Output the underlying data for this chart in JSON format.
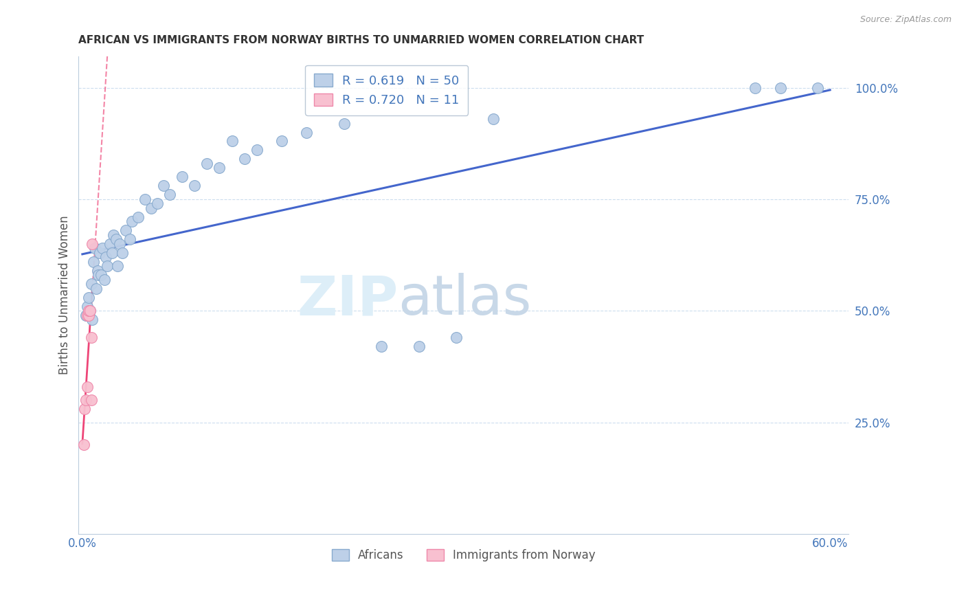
{
  "title": "AFRICAN VS IMMIGRANTS FROM NORWAY BIRTHS TO UNMARRIED WOMEN CORRELATION CHART",
  "source": "Source: ZipAtlas.com",
  "ylabel": "Births to Unmarried Women",
  "xlim": [
    -0.003,
    0.615
  ],
  "ylim": [
    0.0,
    1.07
  ],
  "xticks": [
    0.0,
    0.1,
    0.2,
    0.3,
    0.4,
    0.5,
    0.6
  ],
  "yticks_right": [
    0.25,
    0.5,
    0.75,
    1.0
  ],
  "ytick_labels_right": [
    "25.0%",
    "50.0%",
    "75.0%",
    "100.0%"
  ],
  "blue_scatter_color": "#BDD0E8",
  "blue_edge_color": "#88AACE",
  "pink_scatter_color": "#F8C0D0",
  "pink_edge_color": "#EE88AA",
  "line_blue_color": "#4466CC",
  "line_pink_color": "#EE4477",
  "axis_color": "#BBCCDD",
  "tick_label_color": "#4477BB",
  "grid_color": "#CCDDEE",
  "title_color": "#333333",
  "source_color": "#999999",
  "ylabel_color": "#555555",
  "watermark_zip_color": "#DDEEF8",
  "watermark_atlas_color": "#C8D8E8",
  "R_blue": 0.619,
  "N_blue": 50,
  "R_pink": 0.72,
  "N_pink": 11,
  "africans_x": [
    0.003,
    0.004,
    0.005,
    0.006,
    0.007,
    0.008,
    0.009,
    0.01,
    0.011,
    0.012,
    0.013,
    0.014,
    0.015,
    0.016,
    0.018,
    0.019,
    0.02,
    0.022,
    0.024,
    0.025,
    0.027,
    0.028,
    0.03,
    0.032,
    0.035,
    0.038,
    0.04,
    0.045,
    0.05,
    0.055,
    0.06,
    0.065,
    0.07,
    0.08,
    0.09,
    0.1,
    0.11,
    0.12,
    0.13,
    0.14,
    0.16,
    0.18,
    0.21,
    0.24,
    0.27,
    0.3,
    0.33,
    0.54,
    0.56,
    0.59
  ],
  "africans_y": [
    0.49,
    0.51,
    0.53,
    0.5,
    0.56,
    0.48,
    0.61,
    0.64,
    0.55,
    0.59,
    0.58,
    0.63,
    0.58,
    0.64,
    0.57,
    0.62,
    0.6,
    0.65,
    0.63,
    0.67,
    0.66,
    0.6,
    0.65,
    0.63,
    0.68,
    0.66,
    0.7,
    0.71,
    0.75,
    0.73,
    0.74,
    0.78,
    0.76,
    0.8,
    0.78,
    0.83,
    0.82,
    0.88,
    0.84,
    0.86,
    0.88,
    0.9,
    0.92,
    0.42,
    0.42,
    0.44,
    0.93,
    1.0,
    1.0,
    1.0
  ],
  "norway_x": [
    0.001,
    0.002,
    0.003,
    0.004,
    0.004,
    0.005,
    0.005,
    0.006,
    0.007,
    0.007,
    0.008
  ],
  "norway_y": [
    0.2,
    0.28,
    0.3,
    0.33,
    0.49,
    0.49,
    0.5,
    0.5,
    0.44,
    0.3,
    0.65
  ],
  "norway_trendline_x0": 0.0,
  "norway_trendline_x1": 0.045,
  "blue_trendline_x0": 0.0,
  "blue_trendline_x1": 0.6
}
